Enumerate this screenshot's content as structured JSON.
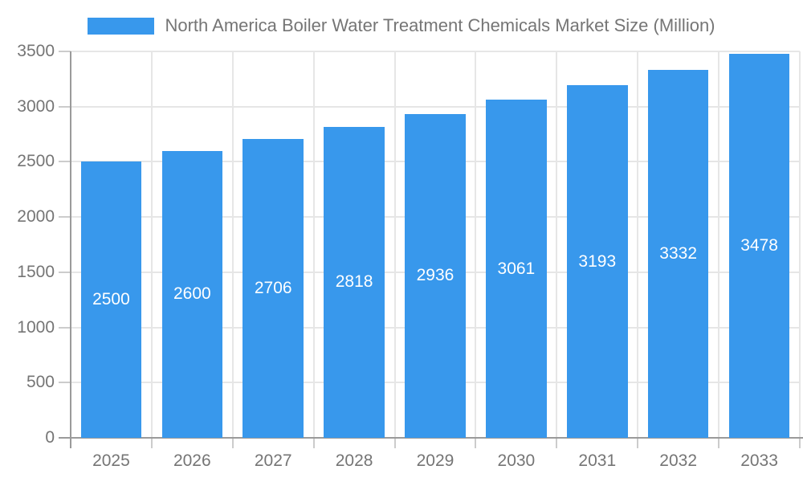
{
  "chart_data": {
    "type": "bar",
    "title": "North America Boiler Water Treatment Chemicals Market Size (Million)",
    "legend": {
      "label": "North America Boiler Water Treatment Chemicals Market Size (Million)",
      "position": "top-center"
    },
    "categories": [
      "2025",
      "2026",
      "2027",
      "2028",
      "2029",
      "2030",
      "2031",
      "2032",
      "2033"
    ],
    "series": [
      {
        "name": "North America Boiler Water Treatment Chemicals Market Size (Million)",
        "values": [
          2500,
          2600,
          2706,
          2818,
          2936,
          3061,
          3193,
          3332,
          3478
        ]
      }
    ],
    "xlabel": "",
    "ylabel": "",
    "ylim": [
      0,
      3500
    ],
    "yticks": [
      0,
      500,
      1000,
      1500,
      2000,
      2500,
      3000,
      3500
    ],
    "grid": true,
    "bar_label_position": "inside-center",
    "colors": {
      "bar": "#3898EC",
      "bar_label": "#FFFFFF",
      "axis_text": "#757575",
      "legend_text": "#757575",
      "grid_line": "#E6E6E6",
      "axis_line": "#9A9A9A",
      "tick_line": "#CCCCCC",
      "background": "#FFFFFF"
    }
  }
}
